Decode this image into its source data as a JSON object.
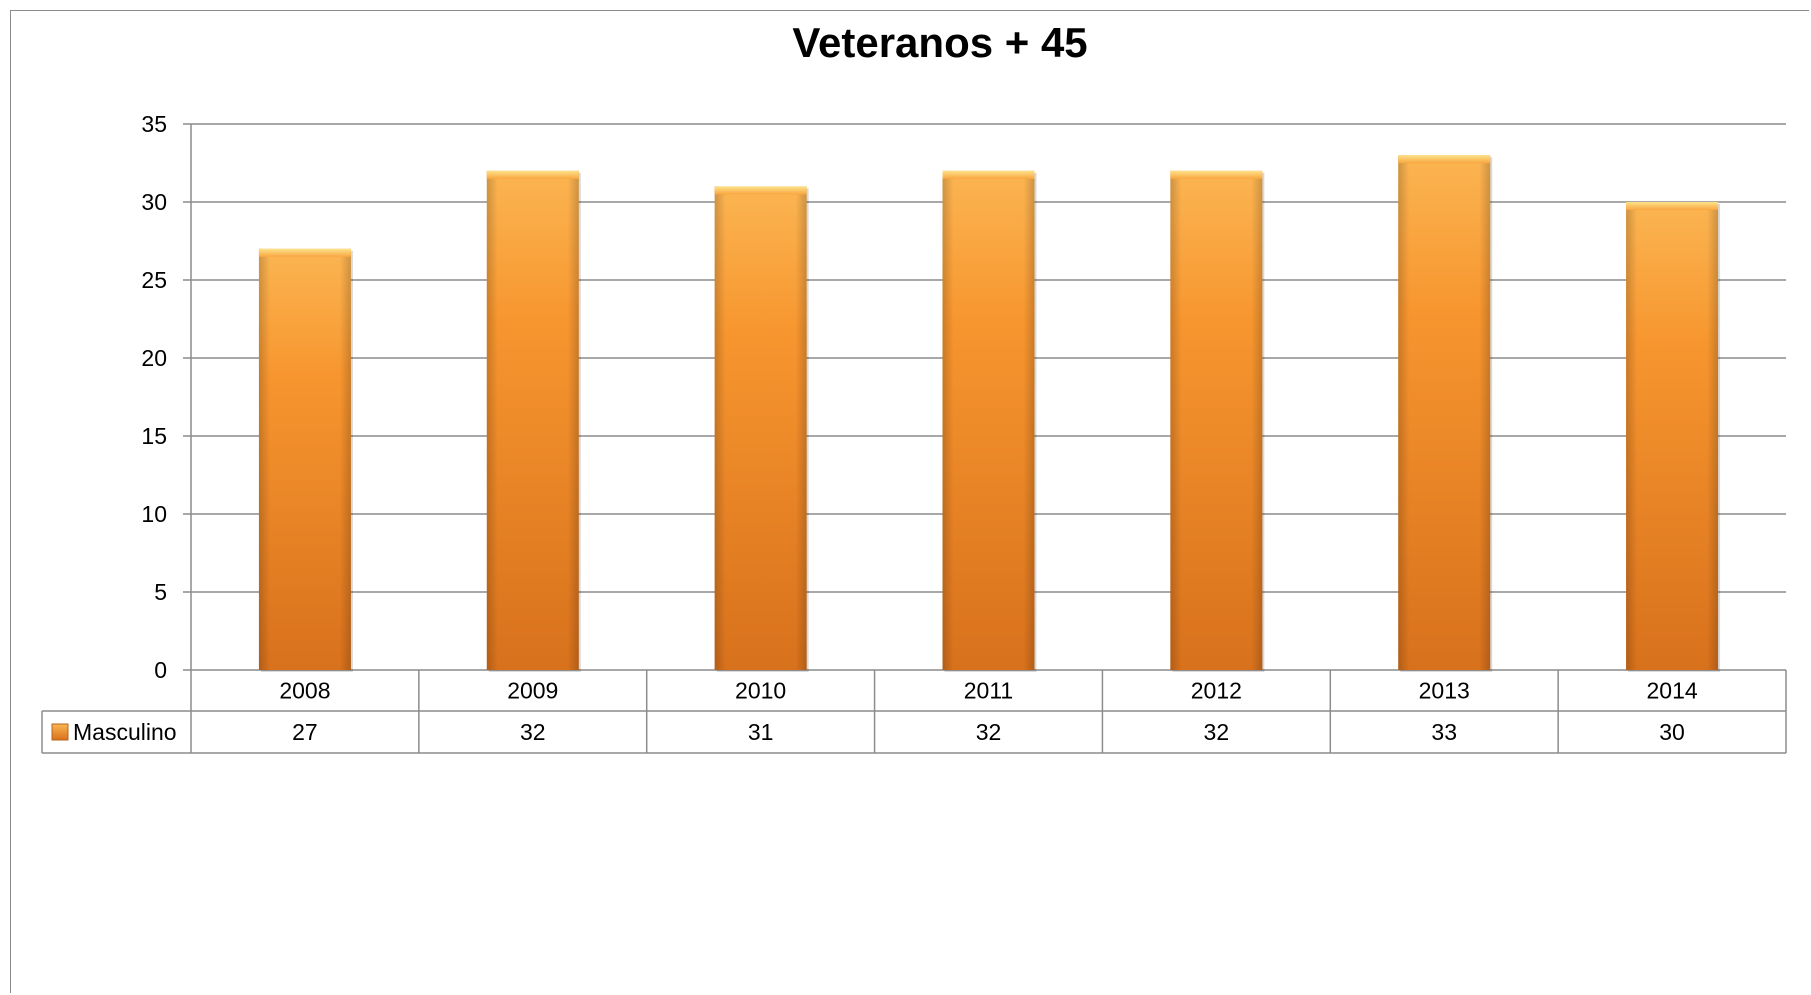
{
  "chart_data": {
    "type": "bar",
    "title": "Veteranos + 45",
    "xlabel": "",
    "ylabel": "",
    "categories": [
      "2008",
      "2009",
      "2010",
      "2011",
      "2012",
      "2013",
      "2014"
    ],
    "series": [
      {
        "name": "Masculino",
        "values": [
          27,
          32,
          31,
          32,
          32,
          33,
          30
        ]
      }
    ],
    "ylim": [
      0,
      35
    ],
    "yticks": [
      0,
      5,
      10,
      15,
      20,
      25,
      30,
      35
    ],
    "grid": true,
    "legend": "data-table",
    "data_table": true,
    "colors": {
      "bar_top": "#fbb552",
      "bar_mid": "#f7962f",
      "bar_bottom": "#d8711c",
      "gridline": "#8c8c8c"
    }
  }
}
